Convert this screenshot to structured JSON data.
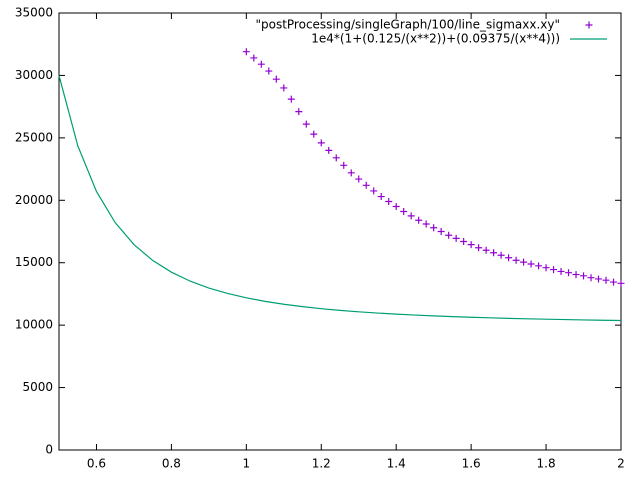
{
  "chart_data": {
    "type": "line",
    "xlim": [
      0.5,
      2
    ],
    "xticks": [
      0.6,
      0.8,
      1,
      1.2,
      1.4,
      1.6,
      1.8,
      2
    ],
    "ylim": [
      0,
      35000
    ],
    "yticks": [
      0,
      5000,
      10000,
      15000,
      20000,
      25000,
      30000,
      35000
    ],
    "legend": "top-right",
    "series": [
      {
        "name": "\"postProcessing/singleGraph/100/line_sigmaxx.xy\"",
        "style": "points",
        "color": "#9400d3",
        "x": [
          1.0,
          1.02,
          1.04,
          1.06,
          1.08,
          1.1,
          1.12,
          1.14,
          1.16,
          1.18,
          1.2,
          1.22,
          1.24,
          1.26,
          1.28,
          1.3,
          1.32,
          1.34,
          1.36,
          1.38,
          1.4,
          1.42,
          1.44,
          1.46,
          1.48,
          1.5,
          1.52,
          1.54,
          1.56,
          1.58,
          1.6,
          1.62,
          1.64,
          1.66,
          1.68,
          1.7,
          1.72,
          1.74,
          1.76,
          1.78,
          1.8,
          1.82,
          1.84,
          1.86,
          1.88,
          1.9,
          1.92,
          1.94,
          1.96,
          1.98,
          2.0
        ],
        "values": [
          31900,
          31400,
          30900,
          30350,
          29700,
          29000,
          28100,
          27100,
          26100,
          25300,
          24600,
          24000,
          23400,
          22800,
          22200,
          21700,
          21200,
          20750,
          20300,
          19900,
          19500,
          19100,
          18750,
          18400,
          18100,
          17800,
          17500,
          17200,
          16950,
          16700,
          16450,
          16200,
          16000,
          15800,
          15600,
          15400,
          15200,
          15050,
          14900,
          14750,
          14600,
          14450,
          14300,
          14200,
          14050,
          13950,
          13800,
          13700,
          13600,
          13450,
          13350
        ]
      },
      {
        "name": "1e4*(1+(0.125/(x**2))+(0.09375/(x**4)))",
        "style": "lines",
        "color": "#009e73",
        "x": [
          0.5,
          0.55,
          0.6,
          0.65,
          0.7,
          0.75,
          0.8,
          0.85,
          0.9,
          0.95,
          1.0,
          1.05,
          1.1,
          1.15,
          1.2,
          1.25,
          1.3,
          1.35,
          1.4,
          1.45,
          1.5,
          1.55,
          1.6,
          1.65,
          1.7,
          1.75,
          1.8,
          1.85,
          1.9,
          1.95,
          2.0
        ],
        "values": [
          30000,
          24377,
          20706,
          18211,
          16456,
          15185,
          14242,
          13526,
          12972,
          12536,
          12188,
          11905,
          11673,
          11481,
          11320,
          11184,
          11068,
          10968,
          10882,
          10807,
          10741,
          10683,
          10631,
          10586,
          10545,
          10508,
          10475,
          10445,
          10418,
          10394,
          10371
        ]
      }
    ]
  }
}
